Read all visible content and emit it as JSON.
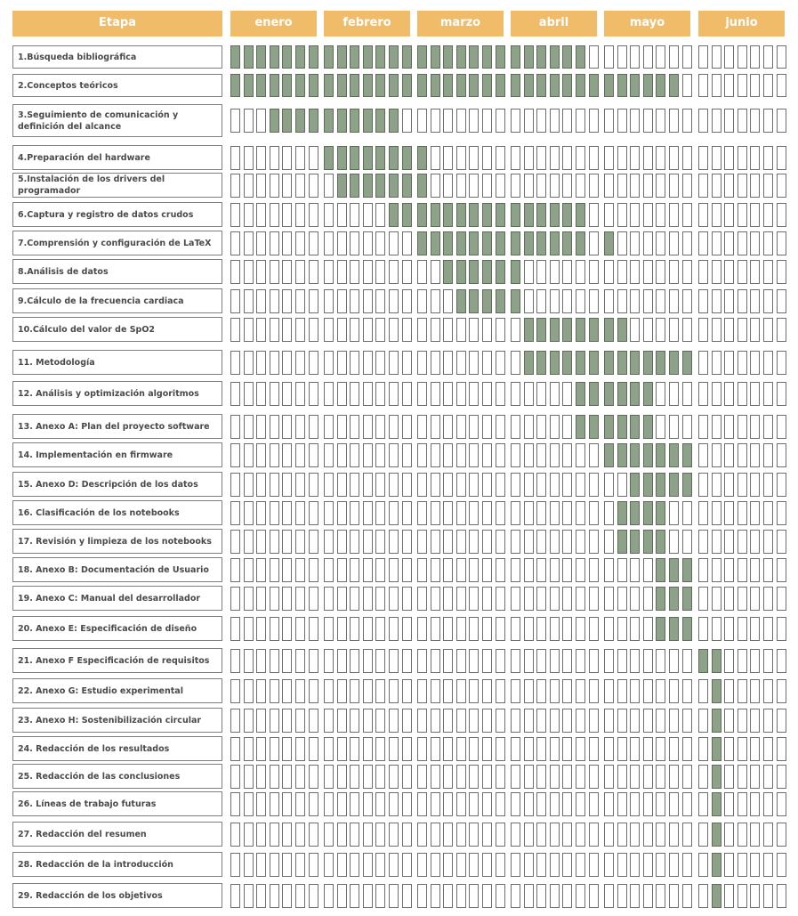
{
  "header": {
    "stage_label": "Etapa",
    "months": [
      "enero",
      "febrero",
      "marzo",
      "abril",
      "mayo",
      "junio"
    ]
  },
  "colors": {
    "header_bg": "#f0bc6a",
    "filled_cell": "#8ea189",
    "border": "#6e6e6e"
  },
  "chart_data": {
    "type": "gantt",
    "columns_per_month": 7,
    "tasks": [
      {
        "label": "1.Búsqueda bibliográfica",
        "filled": [
          [
            0,
            26
          ]
        ]
      },
      {
        "label": "2.Conceptos teóricos",
        "filled": [
          [
            0,
            33
          ]
        ]
      },
      {
        "label": "3.Seguimiento de comunicación y definición del alcance",
        "filled": [
          [
            3,
            12
          ]
        ]
      },
      {
        "label": "4.Preparación del hardware",
        "filled": [
          [
            7,
            14
          ]
        ]
      },
      {
        "label": "5.Instalación de los drivers del programador",
        "filled": [
          [
            8,
            14
          ]
        ]
      },
      {
        "label": "6.Captura y registro de datos crudos",
        "filled": [
          [
            12,
            26
          ]
        ]
      },
      {
        "label": "7.Comprensión y configuración de LaTeX",
        "filled": [
          [
            14,
            26
          ],
          [
            28,
            28
          ]
        ]
      },
      {
        "label": "8.Análisis de datos",
        "filled": [
          [
            16,
            21
          ]
        ]
      },
      {
        "label": "9.Cálculo de la frecuencia cardiaca",
        "filled": [
          [
            17,
            21
          ]
        ]
      },
      {
        "label": "10.Cálculo del valor de SpO2",
        "filled": [
          [
            22,
            29
          ]
        ]
      },
      {
        "label": "11. Metodología",
        "filled": [
          [
            22,
            34
          ]
        ]
      },
      {
        "label": "12. Análisis y optimización algoritmos",
        "filled": [
          [
            26,
            31
          ]
        ]
      },
      {
        "label": "13. Anexo A: Plan del proyecto software",
        "filled": [
          [
            26,
            31
          ]
        ]
      },
      {
        "label": "14. Implementación en firmware",
        "filled": [
          [
            28,
            34
          ]
        ]
      },
      {
        "label": "15. Anexo D: Descripción de los datos",
        "filled": [
          [
            30,
            34
          ]
        ]
      },
      {
        "label": "16. Clasificación de los notebooks",
        "filled": [
          [
            29,
            32
          ]
        ]
      },
      {
        "label": "17. Revisión y limpieza de los notebooks",
        "filled": [
          [
            29,
            32
          ]
        ]
      },
      {
        "label": "18. Anexo B: Documentación de Usuario",
        "filled": [
          [
            32,
            34
          ]
        ]
      },
      {
        "label": "19. Anexo C: Manual del desarrollador",
        "filled": [
          [
            32,
            34
          ]
        ]
      },
      {
        "label": "20. Anexo E: Especificación de diseño",
        "filled": [
          [
            32,
            34
          ]
        ]
      },
      {
        "label": "21. Anexo F Especificación de requisitos",
        "filled": [
          [
            35,
            36
          ]
        ]
      },
      {
        "label": "22. Anexo G: Estudio experimental",
        "filled": [
          [
            36,
            36
          ]
        ]
      },
      {
        "label": "23. Anexo H: Sostenibilización circular",
        "filled": [
          [
            36,
            36
          ]
        ]
      },
      {
        "label": "24. Redacción de los resultados",
        "filled": [
          [
            36,
            36
          ]
        ]
      },
      {
        "label": "25. Redacción de las conclusiones",
        "filled": [
          [
            36,
            36
          ]
        ]
      },
      {
        "label": "26. Líneas de trabajo futuras",
        "filled": [
          [
            36,
            36
          ]
        ]
      },
      {
        "label": "27. Redacción del resumen",
        "filled": [
          [
            36,
            36
          ]
        ]
      },
      {
        "label": "28. Redacción de la introducción",
        "filled": [
          [
            36,
            36
          ]
        ]
      },
      {
        "label": "29. Redacción de los objetivos",
        "filled": [
          [
            36,
            36
          ]
        ]
      }
    ]
  }
}
